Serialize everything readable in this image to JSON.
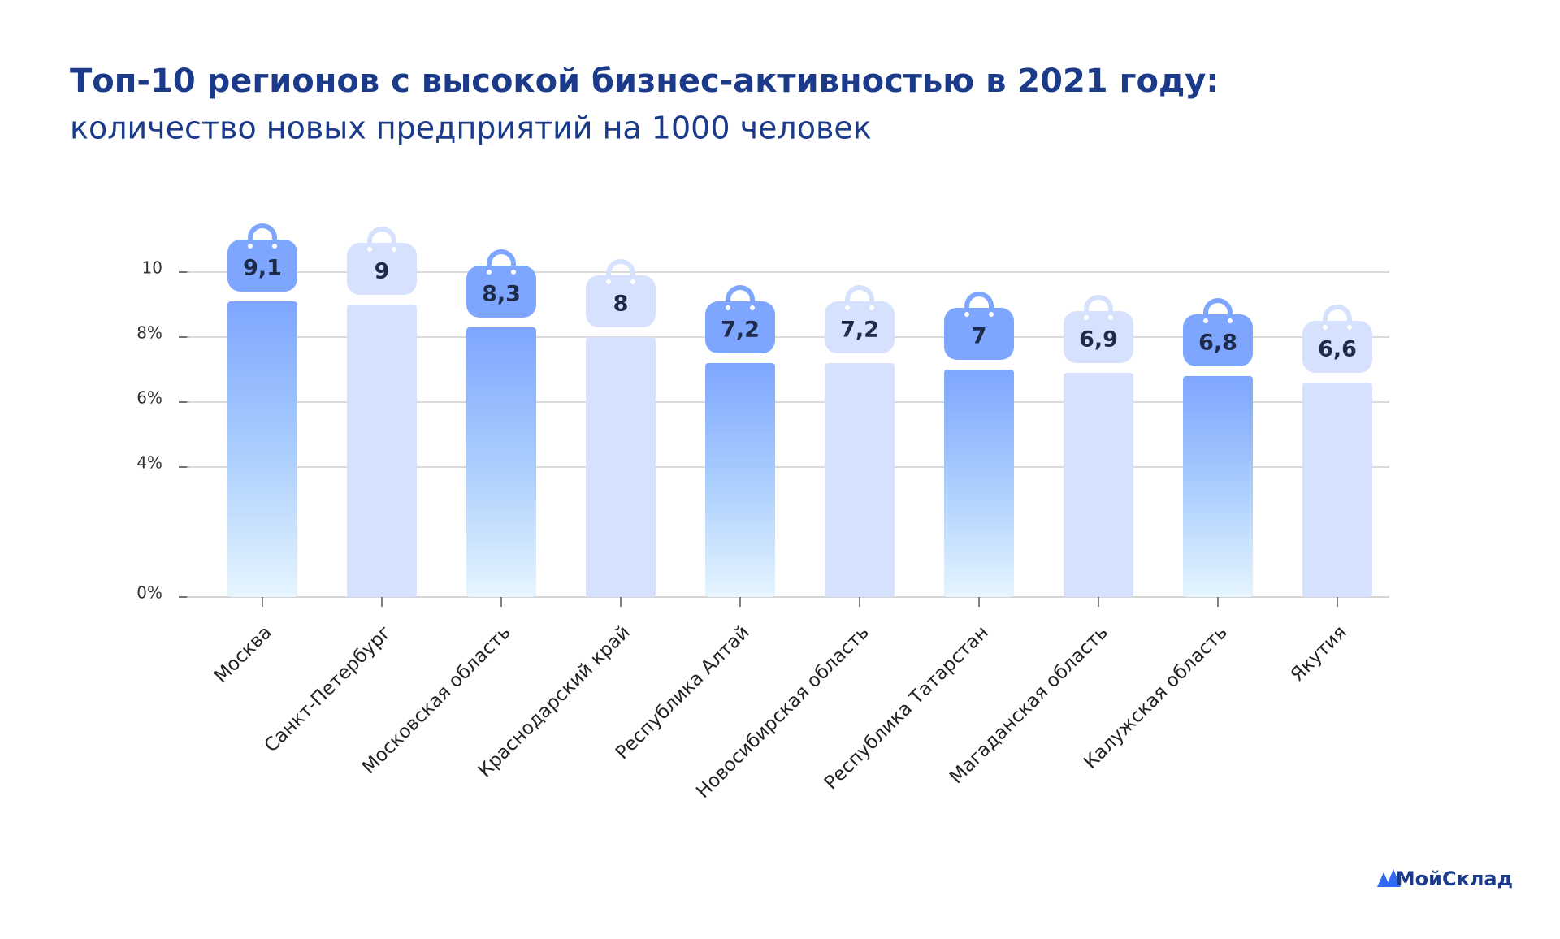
{
  "chart_data": {
    "type": "bar",
    "title": "Топ-10 регионов с высокой бизнес-активностью в 2021 году:",
    "subtitle": "количество новых предприятий на 1000 человек",
    "categories": [
      "Москва",
      "Санкт-Петербург",
      "Московская область",
      "Краснодарский край",
      "Республика Алтай",
      "Новосибирская область",
      "Республика Татарстан",
      "Магаданская область",
      "Калужская область",
      "Якутия"
    ],
    "values": [
      9.1,
      9,
      8.3,
      8,
      7.2,
      7.2,
      7,
      6.9,
      6.8,
      6.6
    ],
    "value_labels": [
      "9,1",
      "9",
      "8,3",
      "8",
      "7,2",
      "7,2",
      "7",
      "6,9",
      "6,8",
      "6,6"
    ],
    "colors": [
      "#7ea6ff",
      "#d6e1fd"
    ],
    "ylim": [
      0,
      10
    ],
    "yticks": [
      {
        "value": 0,
        "label": "0%"
      },
      {
        "value": 4,
        "label": "4%"
      },
      {
        "value": 6,
        "label": "6%"
      },
      {
        "value": 8,
        "label": "8%"
      },
      10
    ],
    "grid": true,
    "logo": "МойСклад"
  }
}
